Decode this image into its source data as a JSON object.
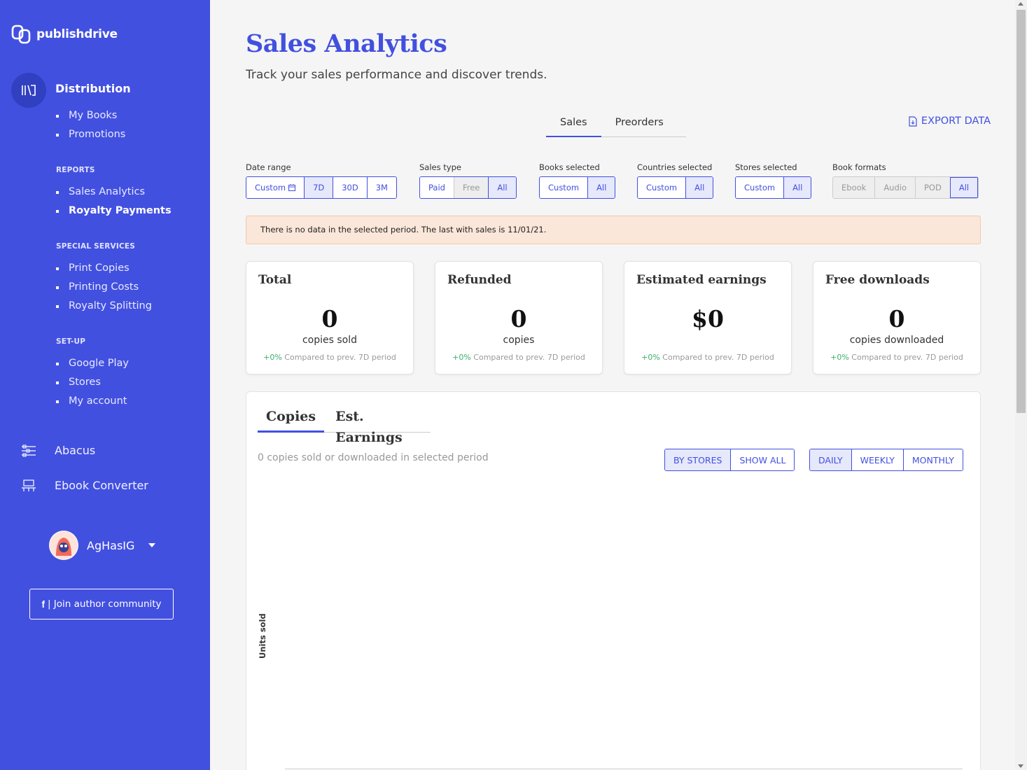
{
  "brand": {
    "name": "publishdrive"
  },
  "sidebar": {
    "distribution": "Distribution",
    "dist_items": [
      "My Books",
      "Promotions"
    ],
    "reports_head": "REPORTS",
    "reports_items": [
      "Sales Analytics",
      "Royalty Payments"
    ],
    "special_head": "SPECIAL SERVICES",
    "special_items": [
      "Print Copies",
      "Printing Costs",
      "Royalty Splitting"
    ],
    "setup_head": "SET-UP",
    "setup_items": [
      "Google Play",
      "Stores",
      "My account"
    ],
    "abacus": "Abacus",
    "converter": "Ebook Converter",
    "user": "AgHasIG",
    "community": "| Join author community"
  },
  "header": {
    "title": "Sales Analytics",
    "subtitle": "Track your sales performance and discover trends.",
    "tabs": [
      "Sales",
      "Preorders"
    ],
    "export": "EXPORT DATA"
  },
  "filters": {
    "date_range": {
      "label": "Date range",
      "options": [
        "Custom",
        "7D",
        "30D",
        "3M"
      ]
    },
    "sales_type": {
      "label": "Sales type",
      "options": [
        "Paid",
        "Free",
        "All"
      ]
    },
    "books": {
      "label": "Books selected",
      "options": [
        "Custom",
        "All"
      ]
    },
    "countries": {
      "label": "Countries selected",
      "options": [
        "Custom",
        "All"
      ]
    },
    "stores": {
      "label": "Stores selected",
      "options": [
        "Custom",
        "All"
      ]
    },
    "formats": {
      "label": "Book formats",
      "options": [
        "Ebook",
        "Audio",
        "POD",
        "All"
      ]
    }
  },
  "alert": "There is no data in the selected period. The last with sales is 11/01/21.",
  "stats": [
    {
      "title": "Total",
      "value": "0",
      "unit": "copies sold",
      "delta": "+0%",
      "compare": "Compared to prev. 7D period"
    },
    {
      "title": "Refunded",
      "value": "0",
      "unit": "copies",
      "delta": "+0%",
      "compare": "Compared to prev. 7D period"
    },
    {
      "title": "Estimated earnings",
      "value": "$0",
      "unit": "",
      "delta": "+0%",
      "compare": "Compared to prev. 7D period"
    },
    {
      "title": "Free downloads",
      "value": "0",
      "unit": "copies downloaded",
      "delta": "+0%",
      "compare": "Compared to prev. 7D period"
    }
  ],
  "chart": {
    "tabs": [
      "Copies",
      "Est. Earnings"
    ],
    "note": "0 copies sold or downloaded in selected period",
    "group_buttons": [
      "BY STORES",
      "SHOW ALL"
    ],
    "period_buttons": [
      "DAILY",
      "WEEKLY",
      "MONTHLY"
    ],
    "ylabel": "Units sold"
  },
  "colors": {
    "brand": "#4250e0",
    "positive": "#3cae6c",
    "alert_bg": "#fbe7d9"
  }
}
